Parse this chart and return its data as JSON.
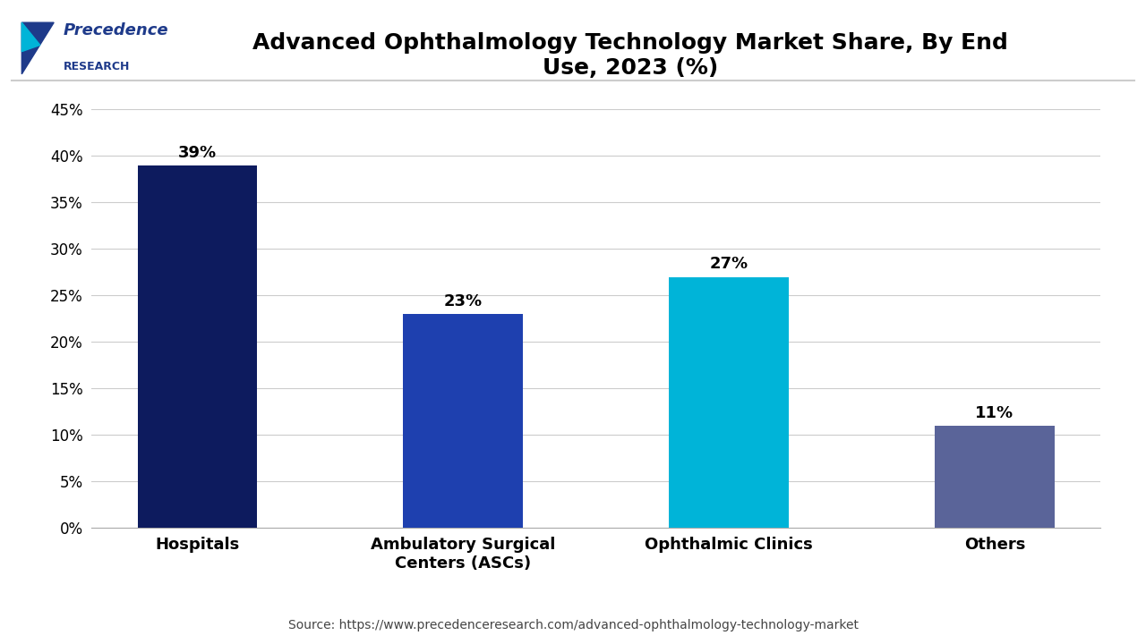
{
  "title": "Advanced Ophthalmology Technology Market Share, By End\nUse, 2023 (%)",
  "categories": [
    "Hospitals",
    "Ambulatory Surgical\nCenters (ASCs)",
    "Ophthalmic Clinics",
    "Others"
  ],
  "values": [
    39,
    23,
    27,
    11
  ],
  "labels": [
    "39%",
    "23%",
    "27%",
    "11%"
  ],
  "bar_colors": [
    "#0d1b5e",
    "#1e40af",
    "#00b4d8",
    "#5a6499"
  ],
  "ylim": [
    0,
    45
  ],
  "yticks": [
    0,
    5,
    10,
    15,
    20,
    25,
    30,
    35,
    40,
    45
  ],
  "ytick_labels": [
    "0%",
    "5%",
    "10%",
    "15%",
    "20%",
    "25%",
    "30%",
    "35%",
    "40%",
    "45%"
  ],
  "source_text": "Source: https://www.precedenceresearch.com/advanced-ophthalmology-technology-market",
  "background_color": "#ffffff",
  "title_fontsize": 18,
  "label_fontsize": 13,
  "tick_fontsize": 12,
  "source_fontsize": 10,
  "bar_width": 0.45,
  "logo_text_line1": "Precedence",
  "logo_text_line2": "RESEARCH"
}
